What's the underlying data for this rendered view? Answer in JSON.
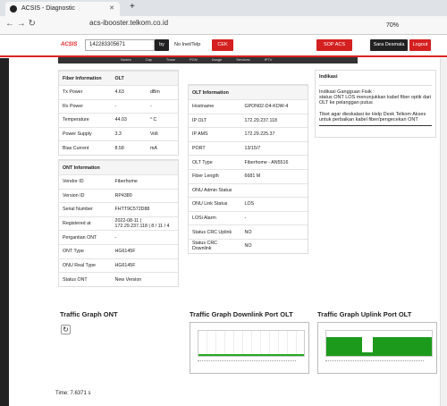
{
  "browser": {
    "tab_title": "ACSIS - Diagnostic",
    "new_tab": "+",
    "address": "acs-ibooster.telkom.co.id",
    "zoom": "70%"
  },
  "toolbar": {
    "logo": "ACSIS",
    "query": "142283305671",
    "by": "by",
    "select": "No Inet/Telp",
    "check": "CEK",
    "sop": "SOP ACS",
    "user": "Sara Desmala",
    "logout": "Logout"
  },
  "tabs": [
    "Nodes",
    "Cap",
    "Trace",
    "PON",
    "Usage",
    "Services",
    "IPTV"
  ],
  "fiber": {
    "title": "Fiber Information",
    "column": "OLT",
    "rows": [
      [
        "Tx Power",
        "4.63",
        "dBm"
      ],
      [
        "Rx Power",
        "-",
        "-"
      ],
      [
        "Temperature",
        "44.03",
        "° C"
      ],
      [
        "Power Supply",
        "3.3",
        "Volt"
      ],
      [
        "Bias Current",
        "8.58",
        "mA"
      ]
    ]
  },
  "ont": {
    "title": "ONT Information",
    "rows": [
      [
        "Vendor ID",
        "Fiberhome"
      ],
      [
        "Version ID",
        "RP4380"
      ],
      [
        "Serial Number",
        "FHTT9C572D88"
      ],
      [
        "Registered at",
        "2022-08-11 | 172.29.237.118 | 8 / 11 / 4"
      ],
      [
        "Pergantian ONT",
        "-"
      ],
      [
        "ONT Type",
        "HG6145F"
      ],
      [
        "ONU Real Type",
        "HG6145F"
      ],
      [
        "Status ONT",
        "New Version"
      ]
    ]
  },
  "olt": {
    "title": "OLT Information",
    "rows": [
      [
        "Hostname",
        "GPON02-D4-KDW-4"
      ],
      [
        "IP OLT",
        "172.29.237.118"
      ],
      [
        "IP AMS",
        "172.29.225.37"
      ],
      [
        "PORT",
        "13/15/7"
      ],
      [
        "OLT Type",
        "Fiberhome - AN5516"
      ],
      [
        "Fiber Length",
        "6681 M"
      ],
      [
        "ONU Admin Status"
      ],
      [
        "ONU Link Status",
        "LOS"
      ],
      [
        "LOSi Alarm",
        "-"
      ],
      [
        "Status CRC Uplink",
        "NO"
      ],
      [
        "Status CRC Downlink",
        "NO"
      ]
    ]
  },
  "indikasi": {
    "title": "Indikasi",
    "heading": "Indikasi Gangguan Fisik :",
    "detail": "status ONT LOS menunjukkan kabel fiber optik dari OLT ke pelanggan putus",
    "action": "Tiket agar dieskalasi ke Help Desk Telkom Akses untuk perbaikan kabel fiber/pengecekan ONT"
  },
  "graphs": [
    "Traffic Graph ONT",
    "Traffic Graph Downlink Port OLT",
    "Traffic Graph Uplink Port OLT"
  ],
  "footer": {
    "time": "Time: 7.6371 s"
  }
}
